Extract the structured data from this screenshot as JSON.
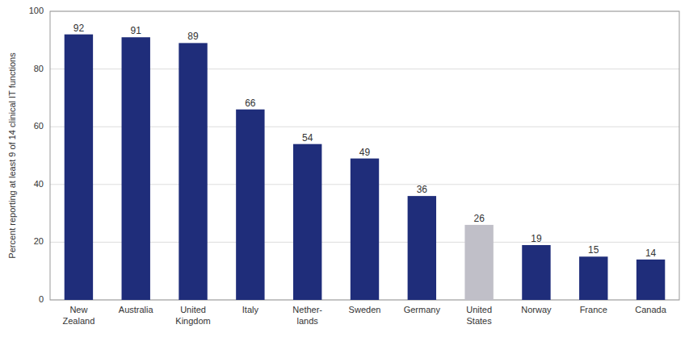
{
  "chart_data": {
    "type": "bar",
    "categories": [
      "New\nZealand",
      "Australia",
      "United\nKingdom",
      "Italy",
      "Nether-\nlands",
      "Sweden",
      "Germany",
      "United\nStates",
      "Norway",
      "France",
      "Canada"
    ],
    "values": [
      92,
      91,
      89,
      66,
      54,
      49,
      36,
      26,
      19,
      15,
      14
    ],
    "colors": [
      "#1f2d7a",
      "#1f2d7a",
      "#1f2d7a",
      "#1f2d7a",
      "#1f2d7a",
      "#1f2d7a",
      "#1f2d7a",
      "#c0bfc8",
      "#1f2d7a",
      "#1f2d7a",
      "#1f2d7a"
    ],
    "y_label": "Percent reporting at least 9 of 14 clinical IT functions",
    "ylim": [
      0,
      100
    ],
    "yticks": [
      0,
      20,
      40,
      60,
      80,
      100
    ],
    "grid": true,
    "data_labels": true
  }
}
